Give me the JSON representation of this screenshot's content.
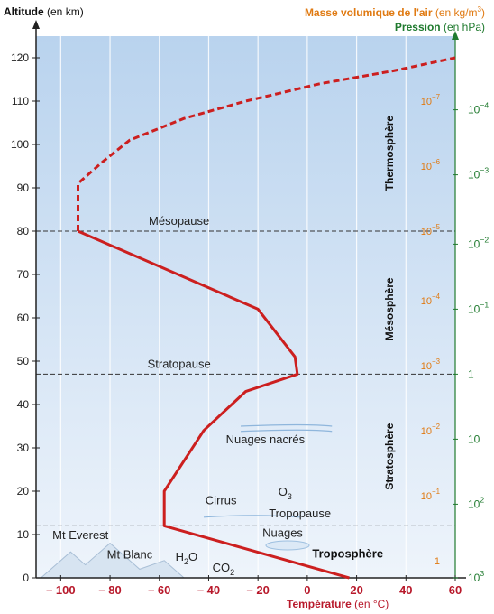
{
  "header": {
    "y_title": "Altitude",
    "y_unit": "(en km)",
    "density_title": "Masse volumique de l'air",
    "density_unit": "(en kg/m",
    "density_unit_sup": "3",
    "density_unit_end": ")",
    "pressure_title": "Pression",
    "pressure_unit": "(en hPa)",
    "x_title": "Température",
    "x_unit": "(en °C)"
  },
  "colors": {
    "curve": "#cc1f1f",
    "temperature_axis": "#b8192b",
    "density": "#e07a12",
    "pressure": "#1f7a2e",
    "sky_top": "#b9d3ee",
    "sky_bottom": "#eef4fb"
  },
  "chart_data": {
    "type": "line",
    "xlabel": "Température (en °C)",
    "ylabel": "Altitude (en km)",
    "xlim": [
      -110,
      60
    ],
    "ylim": [
      0,
      125
    ],
    "x_ticks": [
      {
        "value": -100,
        "label": "– 100"
      },
      {
        "value": -80,
        "label": "– 80"
      },
      {
        "value": -60,
        "label": "– 60"
      },
      {
        "value": -40,
        "label": "– 40"
      },
      {
        "value": -20,
        "label": "– 20"
      },
      {
        "value": 0,
        "label": "0"
      },
      {
        "value": 20,
        "label": "20"
      },
      {
        "value": 40,
        "label": "40"
      },
      {
        "value": 60,
        "label": "60"
      }
    ],
    "y_ticks": [
      0,
      10,
      20,
      30,
      40,
      50,
      60,
      70,
      80,
      90,
      100,
      110,
      120
    ],
    "grid": true,
    "series": [
      {
        "style": "solid",
        "points": [
          [
            17,
            0
          ],
          [
            -58,
            12
          ],
          [
            -58,
            20
          ],
          [
            -42,
            34
          ],
          [
            -25,
            43
          ],
          [
            -4,
            47
          ],
          [
            -5,
            51
          ],
          [
            -20,
            62
          ],
          [
            -93,
            80
          ]
        ]
      },
      {
        "style": "dashed",
        "points": [
          [
            -93,
            80
          ],
          [
            -93,
            91
          ],
          [
            -83,
            96
          ],
          [
            -72,
            101
          ],
          [
            -50,
            106
          ],
          [
            -25,
            110
          ],
          [
            5,
            114
          ],
          [
            35,
            117
          ],
          [
            60,
            120
          ]
        ]
      }
    ],
    "boundaries": [
      {
        "altitude": 12,
        "label": ""
      },
      {
        "altitude": 47,
        "label": "Stratopause"
      },
      {
        "altitude": 80,
        "label": "Mésopause"
      }
    ],
    "layers": [
      {
        "name": "Troposphère",
        "altitude": 5.5
      },
      {
        "name": "Stratosphère",
        "altitude": 28
      },
      {
        "name": "Mésosphère",
        "altitude": 62
      },
      {
        "name": "Thermosphère",
        "altitude": 98
      }
    ],
    "density_scale": [
      {
        "altitude": 4,
        "base": "1",
        "exp": ""
      },
      {
        "altitude": 19,
        "base": "10",
        "exp": "−1"
      },
      {
        "altitude": 34,
        "base": "10",
        "exp": "−2"
      },
      {
        "altitude": 49,
        "base": "10",
        "exp": "−3"
      },
      {
        "altitude": 64,
        "base": "10",
        "exp": "−4"
      },
      {
        "altitude": 80,
        "base": "10",
        "exp": "−5"
      },
      {
        "altitude": 95,
        "base": "10",
        "exp": "−6"
      },
      {
        "altitude": 110,
        "base": "10",
        "exp": "−7"
      }
    ],
    "pressure_scale": [
      {
        "altitude": 0,
        "base": "10",
        "exp": "3"
      },
      {
        "altitude": 17,
        "base": "10",
        "exp": "2"
      },
      {
        "altitude": 32,
        "base": "10",
        "exp": ""
      },
      {
        "altitude": 47,
        "base": "1",
        "exp": ""
      },
      {
        "altitude": 62,
        "base": "10",
        "exp": "−1"
      },
      {
        "altitude": 77,
        "base": "10",
        "exp": "−2"
      },
      {
        "altitude": 93,
        "base": "10",
        "exp": "−3"
      },
      {
        "altitude": 108,
        "base": "10",
        "exp": "−4"
      }
    ],
    "annotations": [
      {
        "text": "Nuages nacrés",
        "x": -17,
        "y": 31
      },
      {
        "text": "Cirrus",
        "x": -35,
        "y": 17
      },
      {
        "text": "O",
        "sub": "3",
        "x": -9,
        "y": 19
      },
      {
        "text": "Tropopause",
        "x": -3,
        "y": 14
      },
      {
        "text": "Nuages",
        "x": -10,
        "y": 9.5
      },
      {
        "text": "Mt Everest",
        "x": -92,
        "y": 9
      },
      {
        "text": "Mt Blanc",
        "x": -72,
        "y": 4.5
      },
      {
        "text": "H",
        "sub": "2",
        "tail": "O",
        "x": -49,
        "y": 4
      },
      {
        "text": "CO",
        "sub": "2",
        "x": -34,
        "y": 1.5
      }
    ]
  }
}
